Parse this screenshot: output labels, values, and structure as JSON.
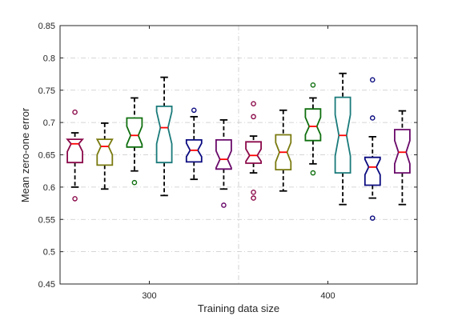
{
  "chart_data": {
    "type": "box",
    "title": "",
    "xlabel": "Training data size",
    "ylabel": "Mean zero-one error",
    "ylim": [
      0.45,
      0.85
    ],
    "yticks": [
      "0.45",
      "0.5",
      "0.55",
      "0.6",
      "0.65",
      "0.7",
      "0.75",
      "0.8",
      "0.85"
    ],
    "grid": true,
    "groups": [
      {
        "label": "300",
        "boxes": [
          {
            "color": "#8b0a4a",
            "whisker_low": 0.6,
            "q1": 0.638,
            "median": 0.667,
            "q3": 0.674,
            "whisker_high": 0.684,
            "notch": [
              0.655,
              0.679
            ],
            "outliers": [
              0.716,
              0.582
            ]
          },
          {
            "color": "#7a7a10",
            "whisker_low": 0.597,
            "q1": 0.634,
            "median": 0.663,
            "q3": 0.674,
            "whisker_high": 0.699,
            "notch": [
              0.65,
              0.676
            ],
            "outliers": []
          },
          {
            "color": "#0f6f0f",
            "whisker_low": 0.625,
            "q1": 0.662,
            "median": 0.68,
            "q3": 0.707,
            "whisker_high": 0.738,
            "notch": [
              0.666,
              0.694
            ],
            "outliers": [
              0.607
            ]
          },
          {
            "color": "#1a7a7a",
            "whisker_low": 0.587,
            "q1": 0.638,
            "median": 0.692,
            "q3": 0.725,
            "whisker_high": 0.77,
            "notch": [
              0.667,
              0.717
            ],
            "outliers": []
          },
          {
            "color": "#0b0b80",
            "whisker_low": 0.612,
            "q1": 0.639,
            "median": 0.657,
            "q3": 0.673,
            "whisker_high": 0.709,
            "notch": [
              0.647,
              0.668
            ],
            "outliers": [
              0.719
            ]
          },
          {
            "color": "#6a0a6a",
            "whisker_low": 0.597,
            "q1": 0.628,
            "median": 0.643,
            "q3": 0.673,
            "whisker_high": 0.704,
            "notch": [
              0.63,
              0.656
            ],
            "outliers": [
              0.572
            ]
          }
        ]
      },
      {
        "label": "400",
        "boxes": [
          {
            "color": "#8b0a4a",
            "whisker_low": 0.622,
            "q1": 0.637,
            "median": 0.649,
            "q3": 0.67,
            "whisker_high": 0.679,
            "notch": [
              0.64,
              0.659
            ],
            "outliers": [
              0.729,
              0.709,
              0.592,
              0.583
            ]
          },
          {
            "color": "#7a7a10",
            "whisker_low": 0.594,
            "q1": 0.627,
            "median": 0.654,
            "q3": 0.681,
            "whisker_high": 0.719,
            "notch": [
              0.639,
              0.669
            ],
            "outliers": []
          },
          {
            "color": "#0f6f0f",
            "whisker_low": 0.636,
            "q1": 0.672,
            "median": 0.694,
            "q3": 0.721,
            "whisker_high": 0.738,
            "notch": [
              0.681,
              0.708
            ],
            "outliers": [
              0.758,
              0.622
            ]
          },
          {
            "color": "#1a7a7a",
            "whisker_low": 0.573,
            "q1": 0.622,
            "median": 0.68,
            "q3": 0.739,
            "whisker_high": 0.776,
            "notch": [
              0.648,
              0.712
            ],
            "outliers": []
          },
          {
            "color": "#0b0b80",
            "whisker_low": 0.583,
            "q1": 0.603,
            "median": 0.631,
            "q3": 0.646,
            "whisker_high": 0.678,
            "notch": [
              0.619,
              0.643
            ],
            "outliers": [
              0.766,
              0.707,
              0.552
            ]
          },
          {
            "color": "#6a0a6a",
            "whisker_low": 0.573,
            "q1": 0.622,
            "median": 0.654,
            "q3": 0.689,
            "whisker_high": 0.718,
            "notch": [
              0.636,
              0.672
            ],
            "outliers": []
          }
        ]
      }
    ],
    "median_color": "#ff0000"
  }
}
